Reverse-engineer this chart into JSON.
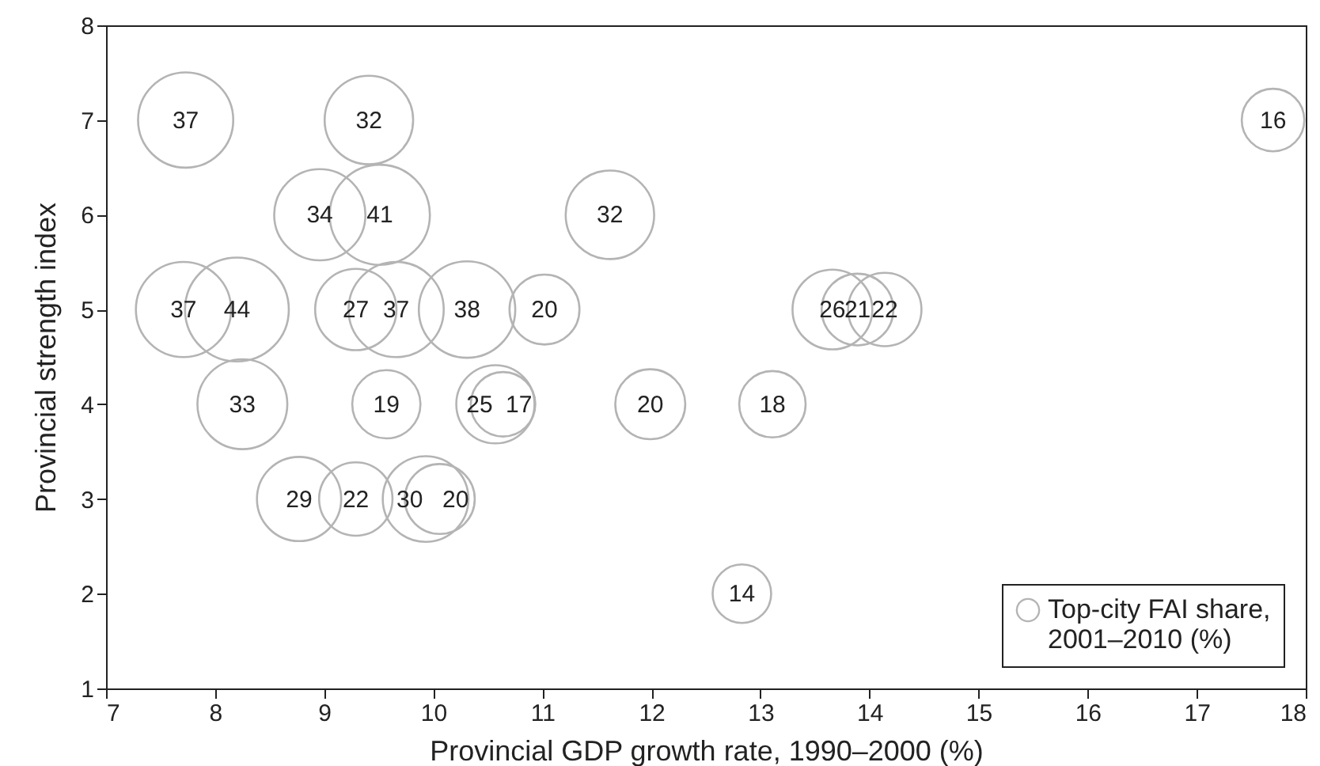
{
  "chart_data": {
    "type": "bubble",
    "xlabel": "Provincial GDP growth rate, 1990–2000 (%)",
    "ylabel": "Provincial strength index",
    "xlim": [
      7,
      18
    ],
    "xticks": [
      7,
      8,
      9,
      10,
      11,
      12,
      13,
      14,
      15,
      16,
      17,
      18
    ],
    "ylim": [
      1,
      8
    ],
    "yticks": [
      1,
      2,
      3,
      4,
      5,
      6,
      7,
      8
    ],
    "grid": false,
    "legend": "bottom right",
    "marker": "circle",
    "series": [
      {
        "name": "Top-city FAI share, 2001–2010 (%)",
        "color": "#b4b4b4",
        "x": [
          7.73,
          9.41,
          8.96,
          9.51,
          11.62,
          7.71,
          8.2,
          9.29,
          9.66,
          10.31,
          11.02,
          8.25,
          9.57,
          10.57,
          10.64,
          11.99,
          8.77,
          9.29,
          9.93,
          10.06,
          13.66,
          13.89,
          14.14,
          13.11,
          12.83,
          17.7
        ],
        "values": [
          7,
          7,
          6,
          6,
          6,
          5,
          5,
          5,
          5,
          5,
          5,
          4,
          4,
          4,
          4,
          4,
          3,
          3,
          3,
          3,
          5,
          5,
          5,
          4,
          2,
          7
        ],
        "sizes": [
          37,
          32,
          34,
          41,
          32,
          37,
          44,
          27,
          37,
          38,
          20,
          33,
          19,
          25,
          17,
          20,
          29,
          22,
          30,
          20,
          26,
          21,
          22,
          18,
          14,
          16
        ],
        "value_labels": [
          "37",
          "32",
          "34",
          "41",
          "32",
          "37",
          "44",
          "27",
          "37",
          "38",
          "20",
          "33",
          "19",
          "25",
          "17",
          "20",
          "29",
          "22",
          "30",
          "20",
          "26",
          "21",
          "22",
          "18",
          "14",
          "16"
        ]
      }
    ]
  }
}
